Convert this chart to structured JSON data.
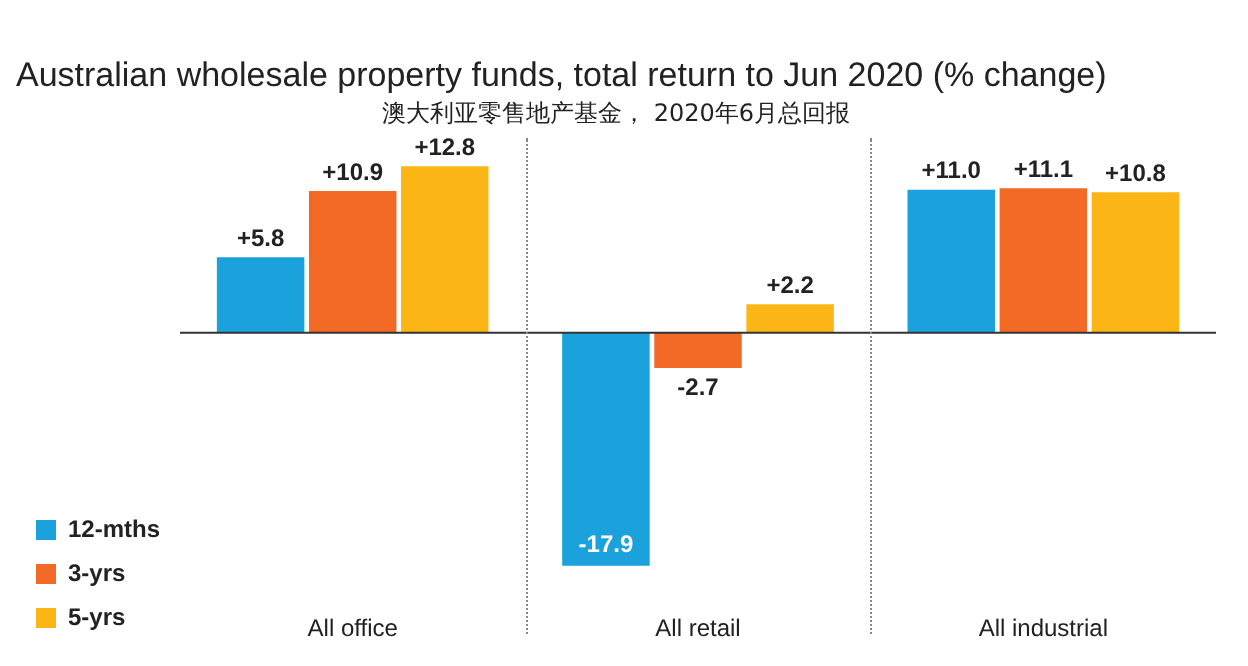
{
  "chart_data": {
    "type": "bar",
    "title": "Australian wholesale property funds, total return to Jun 2020 (% change)",
    "subtitle": "澳大利亚零售地产基金， 2020年6月总回报",
    "categories": [
      "All office",
      "All retail",
      "All industrial"
    ],
    "series": [
      {
        "name": "12-mths",
        "color": "#1ba1dc",
        "values": [
          5.8,
          -17.9,
          11.0
        ],
        "value_labels": [
          "+5.8",
          "-17.9",
          "+11.0"
        ]
      },
      {
        "name": "3-yrs",
        "color": "#f26a25",
        "values": [
          10.9,
          -2.7,
          11.1
        ],
        "value_labels": [
          "+10.9",
          "-2.7",
          "+11.1"
        ]
      },
      {
        "name": "5-yrs",
        "color": "#fbb616",
        "values": [
          12.8,
          2.2,
          10.8
        ],
        "value_labels": [
          "+12.8",
          "+2.2",
          "+10.8"
        ]
      }
    ],
    "legend": "bottom left",
    "grid": false
  }
}
